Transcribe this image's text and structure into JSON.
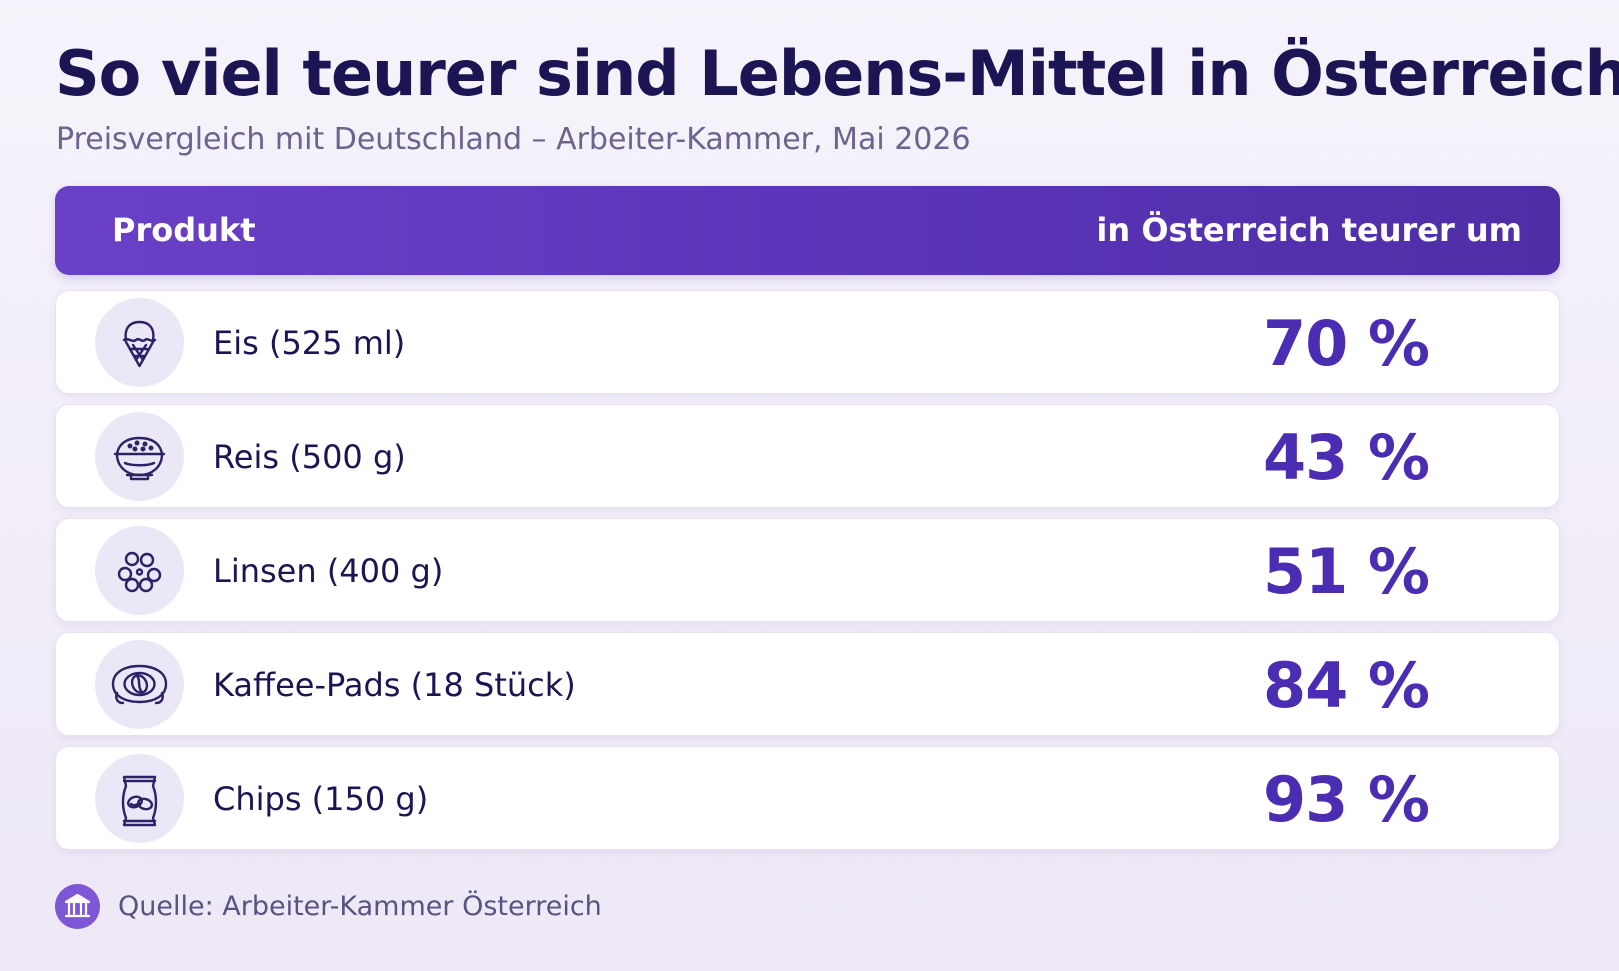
{
  "title": "So viel teurer sind Lebens-Mittel in Österreich",
  "subtitle": "Preisvergleich mit Deutschland – Arbeiter-Kammer, Mai 2026",
  "table": {
    "header_product": "Produkt",
    "header_value": "in Österreich teurer um",
    "rows": [
      {
        "label": "Eis (525 ml)",
        "value": "70 %",
        "icon": "ice-cream-icon"
      },
      {
        "label": "Reis (500 g)",
        "value": "43 %",
        "icon": "rice-bowl-icon"
      },
      {
        "label": "Linsen (400 g)",
        "value": "51 %",
        "icon": "lentils-icon"
      },
      {
        "label": "Kaffee-Pads (18 Stück)",
        "value": "84 %",
        "icon": "coffee-pad-icon"
      },
      {
        "label": "Chips (150 g)",
        "value": "93 %",
        "icon": "chips-bag-icon"
      }
    ]
  },
  "source": {
    "text": "Quelle: Arbeiter-Kammer Österreich",
    "icon": "institution-icon"
  },
  "colors": {
    "title": "#1b1554",
    "accent": "#4b2db3",
    "header_bg": "#5a35b8",
    "icon_bg": "#ece7f7"
  }
}
